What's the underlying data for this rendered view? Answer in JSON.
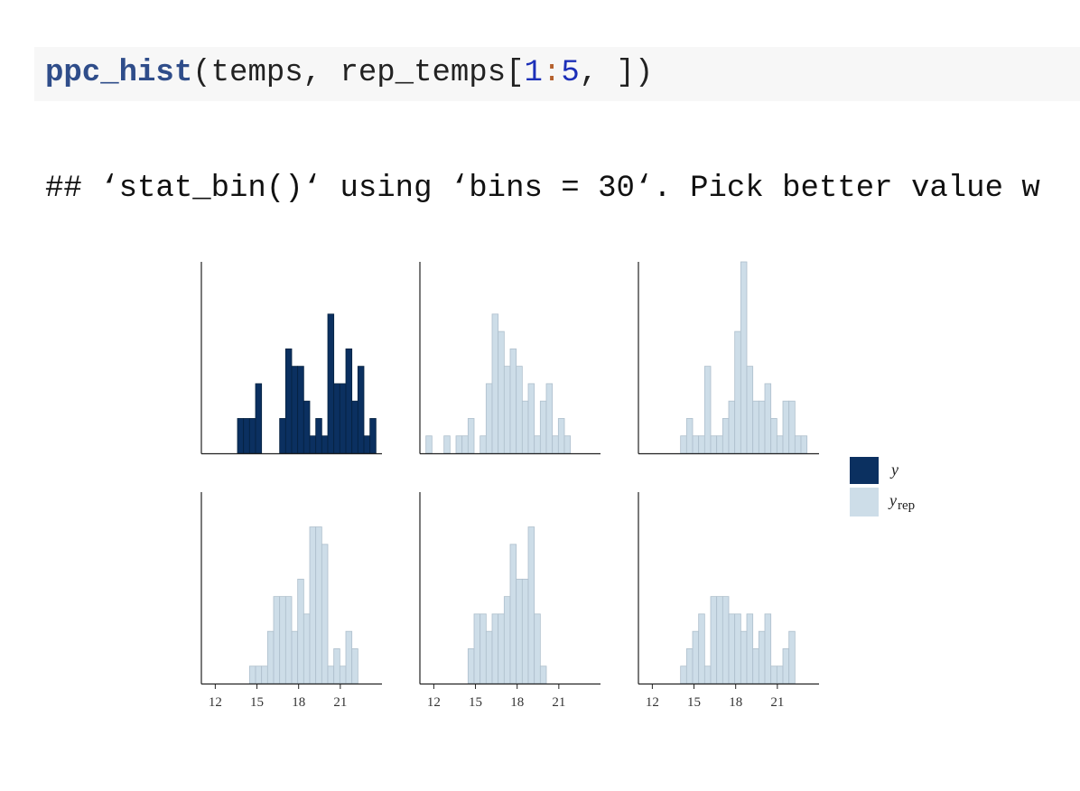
{
  "code": {
    "fn": "ppc_hist",
    "open": "(temps, rep_temps[",
    "n1": "1",
    "colon": ":",
    "n2": "5",
    "close": ", ])"
  },
  "output": "## ‘stat_bin()‘ using ‘bins = 30‘. Pick better value w",
  "colors": {
    "y": "#0b3060",
    "y_edge": "#06213f",
    "yrep": "#cddde8",
    "yrep_edge": "#aebfcc",
    "axis": "#222222"
  },
  "legend": {
    "y": "y",
    "yrep": "y",
    "yrep_sub": "rep"
  },
  "chart_data": {
    "type": "bar",
    "xlim": [
      11,
      24
    ],
    "bins": 30,
    "x_ticks": [
      "12",
      "15",
      "18",
      "21"
    ],
    "panels": [
      {
        "name": "y",
        "values": [
          0,
          0,
          0,
          0,
          0,
          0,
          2,
          2,
          2,
          4,
          0,
          0,
          0,
          2,
          6,
          5,
          5,
          3,
          1,
          2,
          1,
          8,
          4,
          4,
          6,
          3,
          5,
          1,
          2,
          0
        ]
      },
      {
        "name": "yrep",
        "values": [
          0,
          1,
          0,
          0,
          1,
          0,
          1,
          1,
          2,
          0,
          1,
          4,
          8,
          7,
          5,
          6,
          5,
          3,
          4,
          1,
          3,
          4,
          1,
          2,
          1,
          0,
          0,
          0,
          0,
          0
        ]
      },
      {
        "name": "yrep",
        "values": [
          0,
          0,
          0,
          0,
          0,
          0,
          0,
          1,
          2,
          1,
          1,
          5,
          1,
          1,
          2,
          3,
          7,
          11,
          5,
          3,
          3,
          4,
          2,
          1,
          3,
          3,
          1,
          1,
          0,
          0
        ]
      },
      {
        "name": "yrep",
        "values": [
          0,
          0,
          0,
          0,
          0,
          0,
          0,
          0,
          1,
          1,
          1,
          3,
          5,
          5,
          5,
          3,
          6,
          4,
          9,
          9,
          8,
          1,
          2,
          1,
          3,
          2,
          0,
          0,
          0,
          0
        ]
      },
      {
        "name": "yrep",
        "values": [
          0,
          0,
          0,
          0,
          0,
          0,
          0,
          0,
          2,
          4,
          4,
          3,
          4,
          4,
          5,
          8,
          6,
          6,
          9,
          4,
          1,
          0,
          0,
          0,
          0,
          0,
          0,
          0,
          0,
          0
        ]
      },
      {
        "name": "yrep",
        "values": [
          0,
          0,
          0,
          0,
          0,
          0,
          0,
          1,
          2,
          3,
          4,
          1,
          5,
          5,
          5,
          4,
          4,
          3,
          4,
          2,
          3,
          4,
          1,
          1,
          2,
          3,
          0,
          0,
          0,
          0
        ]
      }
    ]
  }
}
